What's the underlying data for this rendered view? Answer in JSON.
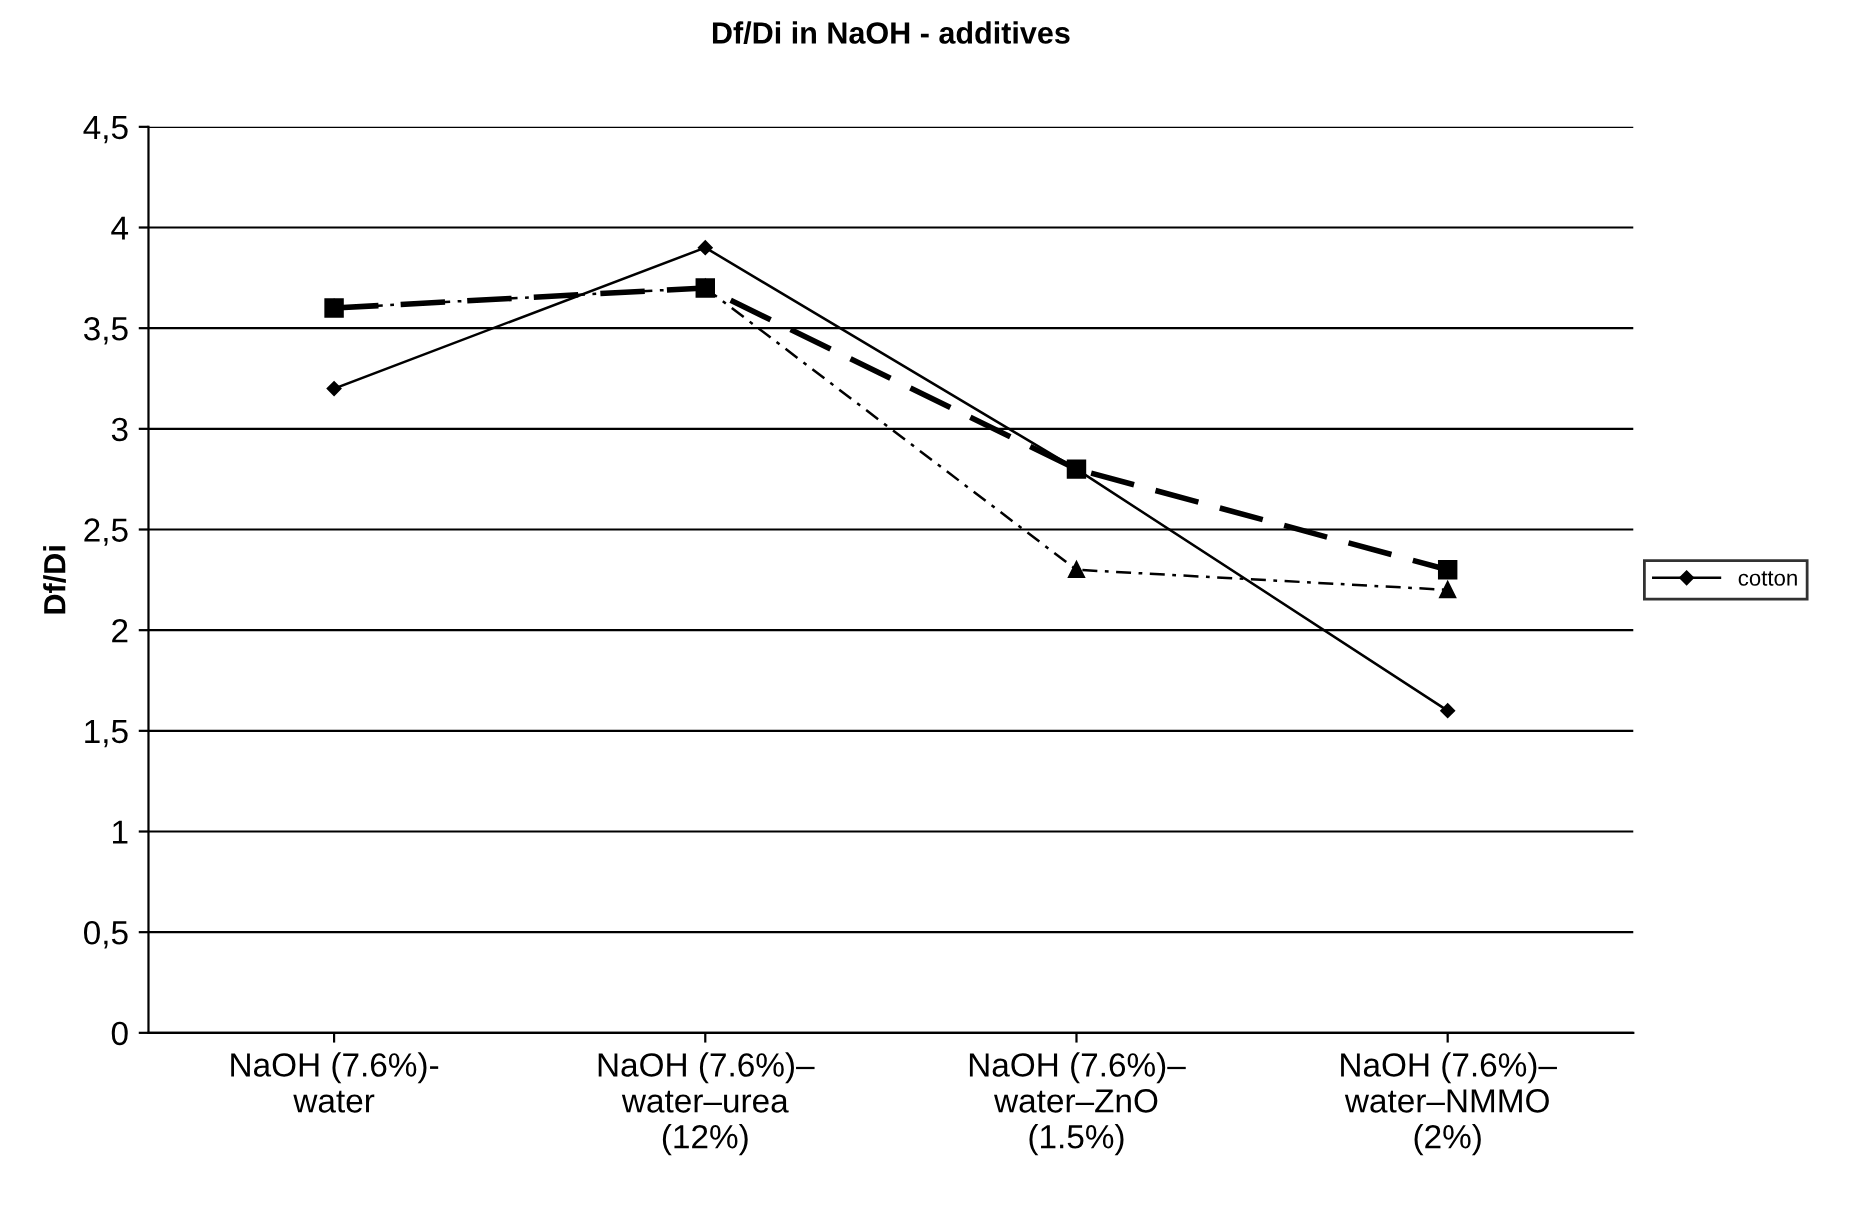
{
  "chart_data": {
    "type": "line",
    "title": "Df/Di in NaOH - additives",
    "ylabel": "Df/Di",
    "categories": [
      "NaOH (7.6%)-\nwater",
      "NaOH (7.6%)–\nwater–urea\n(12%)",
      "NaOH (7.6%)–\nwater–ZnO\n(1.5%)",
      "NaOH (7.6%)–\nwater–NMMO\n(2%)"
    ],
    "series": [
      {
        "name": "cotton",
        "color": "#000000",
        "marker": "diamond",
        "line_style": "solid",
        "values": [
          3.2,
          3.9,
          2.8,
          1.6
        ]
      },
      {
        "color": "#000000",
        "marker": "square",
        "line_style": "dashed",
        "values": [
          3.6,
          3.7,
          2.8,
          2.3
        ]
      },
      {
        "color": "#000000",
        "marker": "triangle",
        "line_style": "dashdot",
        "values": [
          3.6,
          3.7,
          2.3,
          2.2
        ]
      }
    ],
    "ylim": [
      0,
      4.5
    ],
    "yticks": [
      {
        "value": 0,
        "label": "0"
      },
      {
        "value": 0.5,
        "label": "0,5"
      },
      {
        "value": 1,
        "label": "1"
      },
      {
        "value": 1.5,
        "label": "1,5"
      },
      {
        "value": 2,
        "label": "2"
      },
      {
        "value": 2.5,
        "label": "2,5"
      },
      {
        "value": 3,
        "label": "3"
      },
      {
        "value": 3.5,
        "label": "3,5"
      },
      {
        "value": 4,
        "label": "4"
      },
      {
        "value": 4.5,
        "label": "4,5"
      }
    ],
    "grid": "y",
    "legend": "right"
  }
}
